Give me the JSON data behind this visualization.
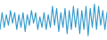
{
  "values": [
    -5,
    3,
    -4,
    2,
    -3,
    4,
    -2,
    3,
    -5,
    2,
    -4,
    3,
    -6,
    2,
    -3,
    4,
    -2,
    3,
    -5,
    1,
    -4,
    3,
    -5,
    2,
    -4,
    6,
    -3,
    5,
    -6,
    3,
    -4,
    5,
    -7,
    4,
    -5,
    6,
    -4,
    5,
    -7,
    4,
    -5,
    6,
    -8,
    5,
    -4,
    7,
    -5,
    6,
    -3,
    4,
    -5,
    3
  ],
  "line_color": "#3399cc",
  "fill_color": "#3399cc",
  "background_color": "#ffffff",
  "linewidth": 0.8,
  "ylim": [
    -10,
    9
  ]
}
